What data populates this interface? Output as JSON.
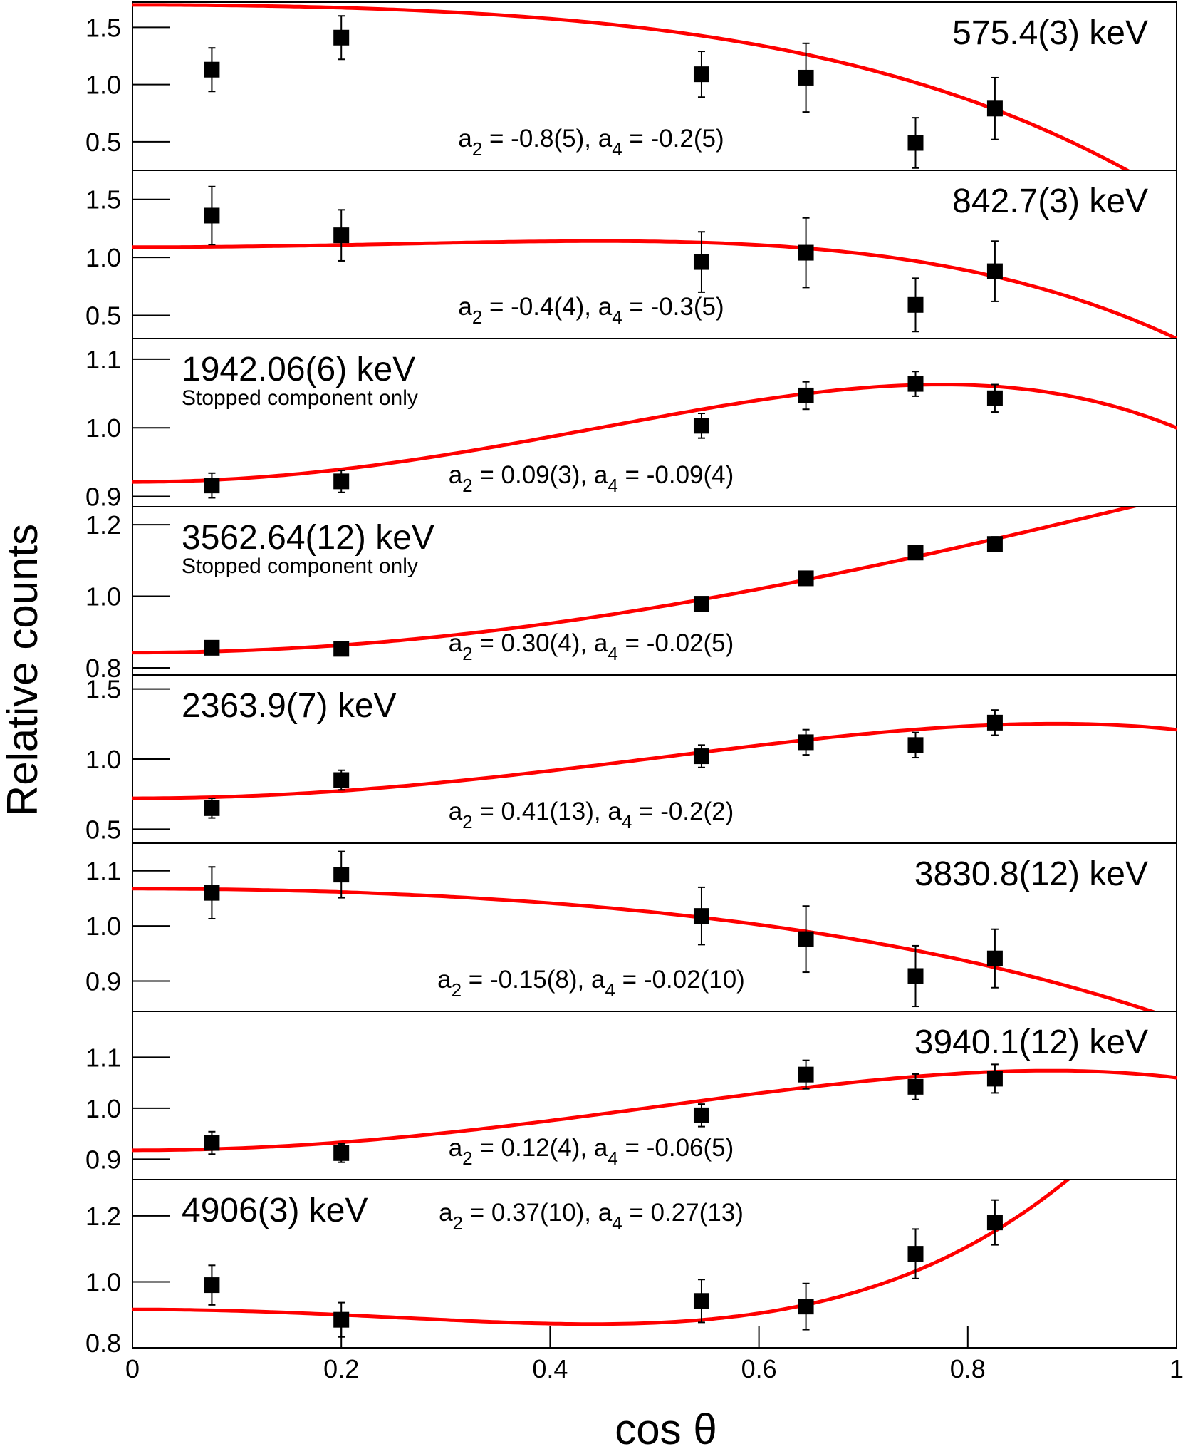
{
  "chart_data": {
    "type": "scatter",
    "xlabel": "cos θ",
    "ylabel": "Relative counts",
    "xlim": [
      0,
      1
    ],
    "x_ticks": [
      0,
      0.2,
      0.4,
      0.6,
      0.8,
      1
    ],
    "x_tick_labels": [
      "0",
      "0.2",
      "0.4",
      "0.6",
      "0.8",
      "1"
    ],
    "x": [
      0.076,
      0.2,
      0.545,
      0.645,
      0.75,
      0.826
    ],
    "colors": {
      "data": "#000000",
      "fit": "#ff0000"
    },
    "panels": [
      {
        "name": "575.4",
        "label": "575.4(3) keV",
        "label_pos": "top-right",
        "sublabel": "",
        "coef_a2": "-0.8(5)",
        "coef_a4": "-0.2(5)",
        "coef_pos": "bottom-center",
        "ylim": [
          0.25,
          1.72
        ],
        "yticks": [
          0.5,
          1.0,
          1.5
        ],
        "ytick_labels": [
          "0.5",
          "1.0",
          "1.5"
        ],
        "y": [
          1.13,
          1.41,
          1.09,
          1.06,
          0.49,
          0.79
        ],
        "yerr": [
          0.19,
          0.19,
          0.2,
          0.3,
          0.22,
          0.27
        ],
        "fit": {
          "A0": 1.28,
          "a2": -0.8,
          "a4": -0.2
        }
      },
      {
        "name": "842.7",
        "label": "842.7(3) keV",
        "label_pos": "top-right",
        "sublabel": "",
        "coef_a2": "-0.4(4)",
        "coef_a4": "-0.3(5)",
        "coef_pos": "bottom-center",
        "ylim": [
          0.3,
          1.75
        ],
        "yticks": [
          0.5,
          1.0,
          1.5
        ],
        "ytick_labels": [
          "0.5",
          "1.0",
          "1.5"
        ],
        "y": [
          1.36,
          1.19,
          0.96,
          1.04,
          0.59,
          0.88
        ],
        "yerr": [
          0.25,
          0.22,
          0.26,
          0.3,
          0.23,
          0.26
        ],
        "fit": {
          "A0": 1.0,
          "a2": -0.4,
          "a4": -0.3
        }
      },
      {
        "name": "1942.06",
        "label": "1942.06(6) keV",
        "label_pos": "top-left",
        "sublabel": "Stopped component only",
        "coef_a2": "0.09(3)",
        "coef_a4": "-0.09(4)",
        "coef_pos": "bottom-center",
        "ylim": [
          0.885,
          1.13
        ],
        "yticks": [
          0.9,
          1.0,
          1.1
        ],
        "ytick_labels": [
          "0.9",
          "1.0",
          "1.1"
        ],
        "y": [
          0.916,
          0.922,
          1.003,
          1.047,
          1.064,
          1.043
        ],
        "yerr": [
          0.018,
          0.016,
          0.018,
          0.02,
          0.018,
          0.02
        ],
        "fit": {
          "A0": 1.0,
          "a2": 0.09,
          "a4": -0.09
        }
      },
      {
        "name": "3562.64",
        "label": "3562.64(12) keV",
        "label_pos": "top-left",
        "sublabel": "Stopped component only",
        "coef_a2": "0.30(4)",
        "coef_a4": "-0.02(5)",
        "coef_pos": "bottom-center",
        "ylim": [
          0.78,
          1.25
        ],
        "yticks": [
          0.8,
          1.0,
          1.2
        ],
        "ytick_labels": [
          "0.8",
          "1.0",
          "1.2"
        ],
        "y": [
          0.856,
          0.853,
          0.979,
          1.05,
          1.122,
          1.146
        ],
        "yerr": [
          0.012,
          0.012,
          0.014,
          0.016,
          0.018,
          0.02
        ],
        "fit": {
          "A0": 1.0,
          "a2": 0.3,
          "a4": -0.02
        }
      },
      {
        "name": "2363.9",
        "label": "2363.9(7) keV",
        "label_pos": "top-left",
        "sublabel": "",
        "coef_a2": "0.41(13)",
        "coef_a4": "-0.2(2)",
        "coef_pos": "bottom-center",
        "ylim": [
          0.4,
          1.6
        ],
        "yticks": [
          0.5,
          1.0,
          1.5
        ],
        "ytick_labels": [
          "0.5",
          "1.0",
          "1.5"
        ],
        "y": [
          0.65,
          0.85,
          1.02,
          1.12,
          1.1,
          1.26
        ],
        "yerr": [
          0.07,
          0.07,
          0.08,
          0.09,
          0.09,
          0.09
        ],
        "fit": {
          "A0": 1.0,
          "a2": 0.41,
          "a4": -0.2
        }
      },
      {
        "name": "3830.8",
        "label": "3830.8(12) keV",
        "label_pos": "top-right",
        "sublabel": "",
        "coef_a2": "-0.15(8)",
        "coef_a4": "-0.02(10)",
        "coef_pos": "bottom-center",
        "ylim": [
          0.845,
          1.15
        ],
        "yticks": [
          0.9,
          1.0,
          1.1
        ],
        "ytick_labels": [
          "0.9",
          "1.0",
          "1.1"
        ],
        "y": [
          1.06,
          1.093,
          1.018,
          0.976,
          0.909,
          0.941
        ],
        "yerr": [
          0.047,
          0.042,
          0.052,
          0.06,
          0.055,
          0.053
        ],
        "fit": {
          "A0": 1.0,
          "a2": -0.15,
          "a4": -0.02
        }
      },
      {
        "name": "3940.1",
        "label": "3940.1(12) keV",
        "label_pos": "top-right",
        "sublabel": "",
        "coef_a2": "0.12(4)",
        "coef_a4": "-0.06(5)",
        "coef_pos": "bottom-center",
        "ylim": [
          0.86,
          1.19
        ],
        "yticks": [
          0.9,
          1.0,
          1.1
        ],
        "ytick_labels": [
          "0.9",
          "1.0",
          "1.1"
        ],
        "y": [
          0.932,
          0.912,
          0.986,
          1.066,
          1.042,
          1.058
        ],
        "yerr": [
          0.022,
          0.018,
          0.022,
          0.028,
          0.025,
          0.028
        ],
        "fit": {
          "A0": 1.0,
          "a2": 0.12,
          "a4": -0.06
        }
      },
      {
        "name": "4906",
        "label": "4906(3) keV",
        "label_pos": "top-left",
        "sublabel": "",
        "coef_a2": "0.37(10)",
        "coef_a4": "0.27(13)",
        "coef_pos": "top-center",
        "ylim": [
          0.8,
          1.31
        ],
        "yticks": [
          0.8,
          1.0,
          1.2
        ],
        "ytick_labels": [
          "0.8",
          "1.0",
          "1.2"
        ],
        "y": [
          0.99,
          0.885,
          0.942,
          0.925,
          1.085,
          1.18
        ],
        "yerr": [
          0.06,
          0.052,
          0.065,
          0.07,
          0.075,
          0.068
        ],
        "fit": {
          "A0": 1.0,
          "a2": 0.37,
          "a4": 0.27
        }
      }
    ]
  }
}
